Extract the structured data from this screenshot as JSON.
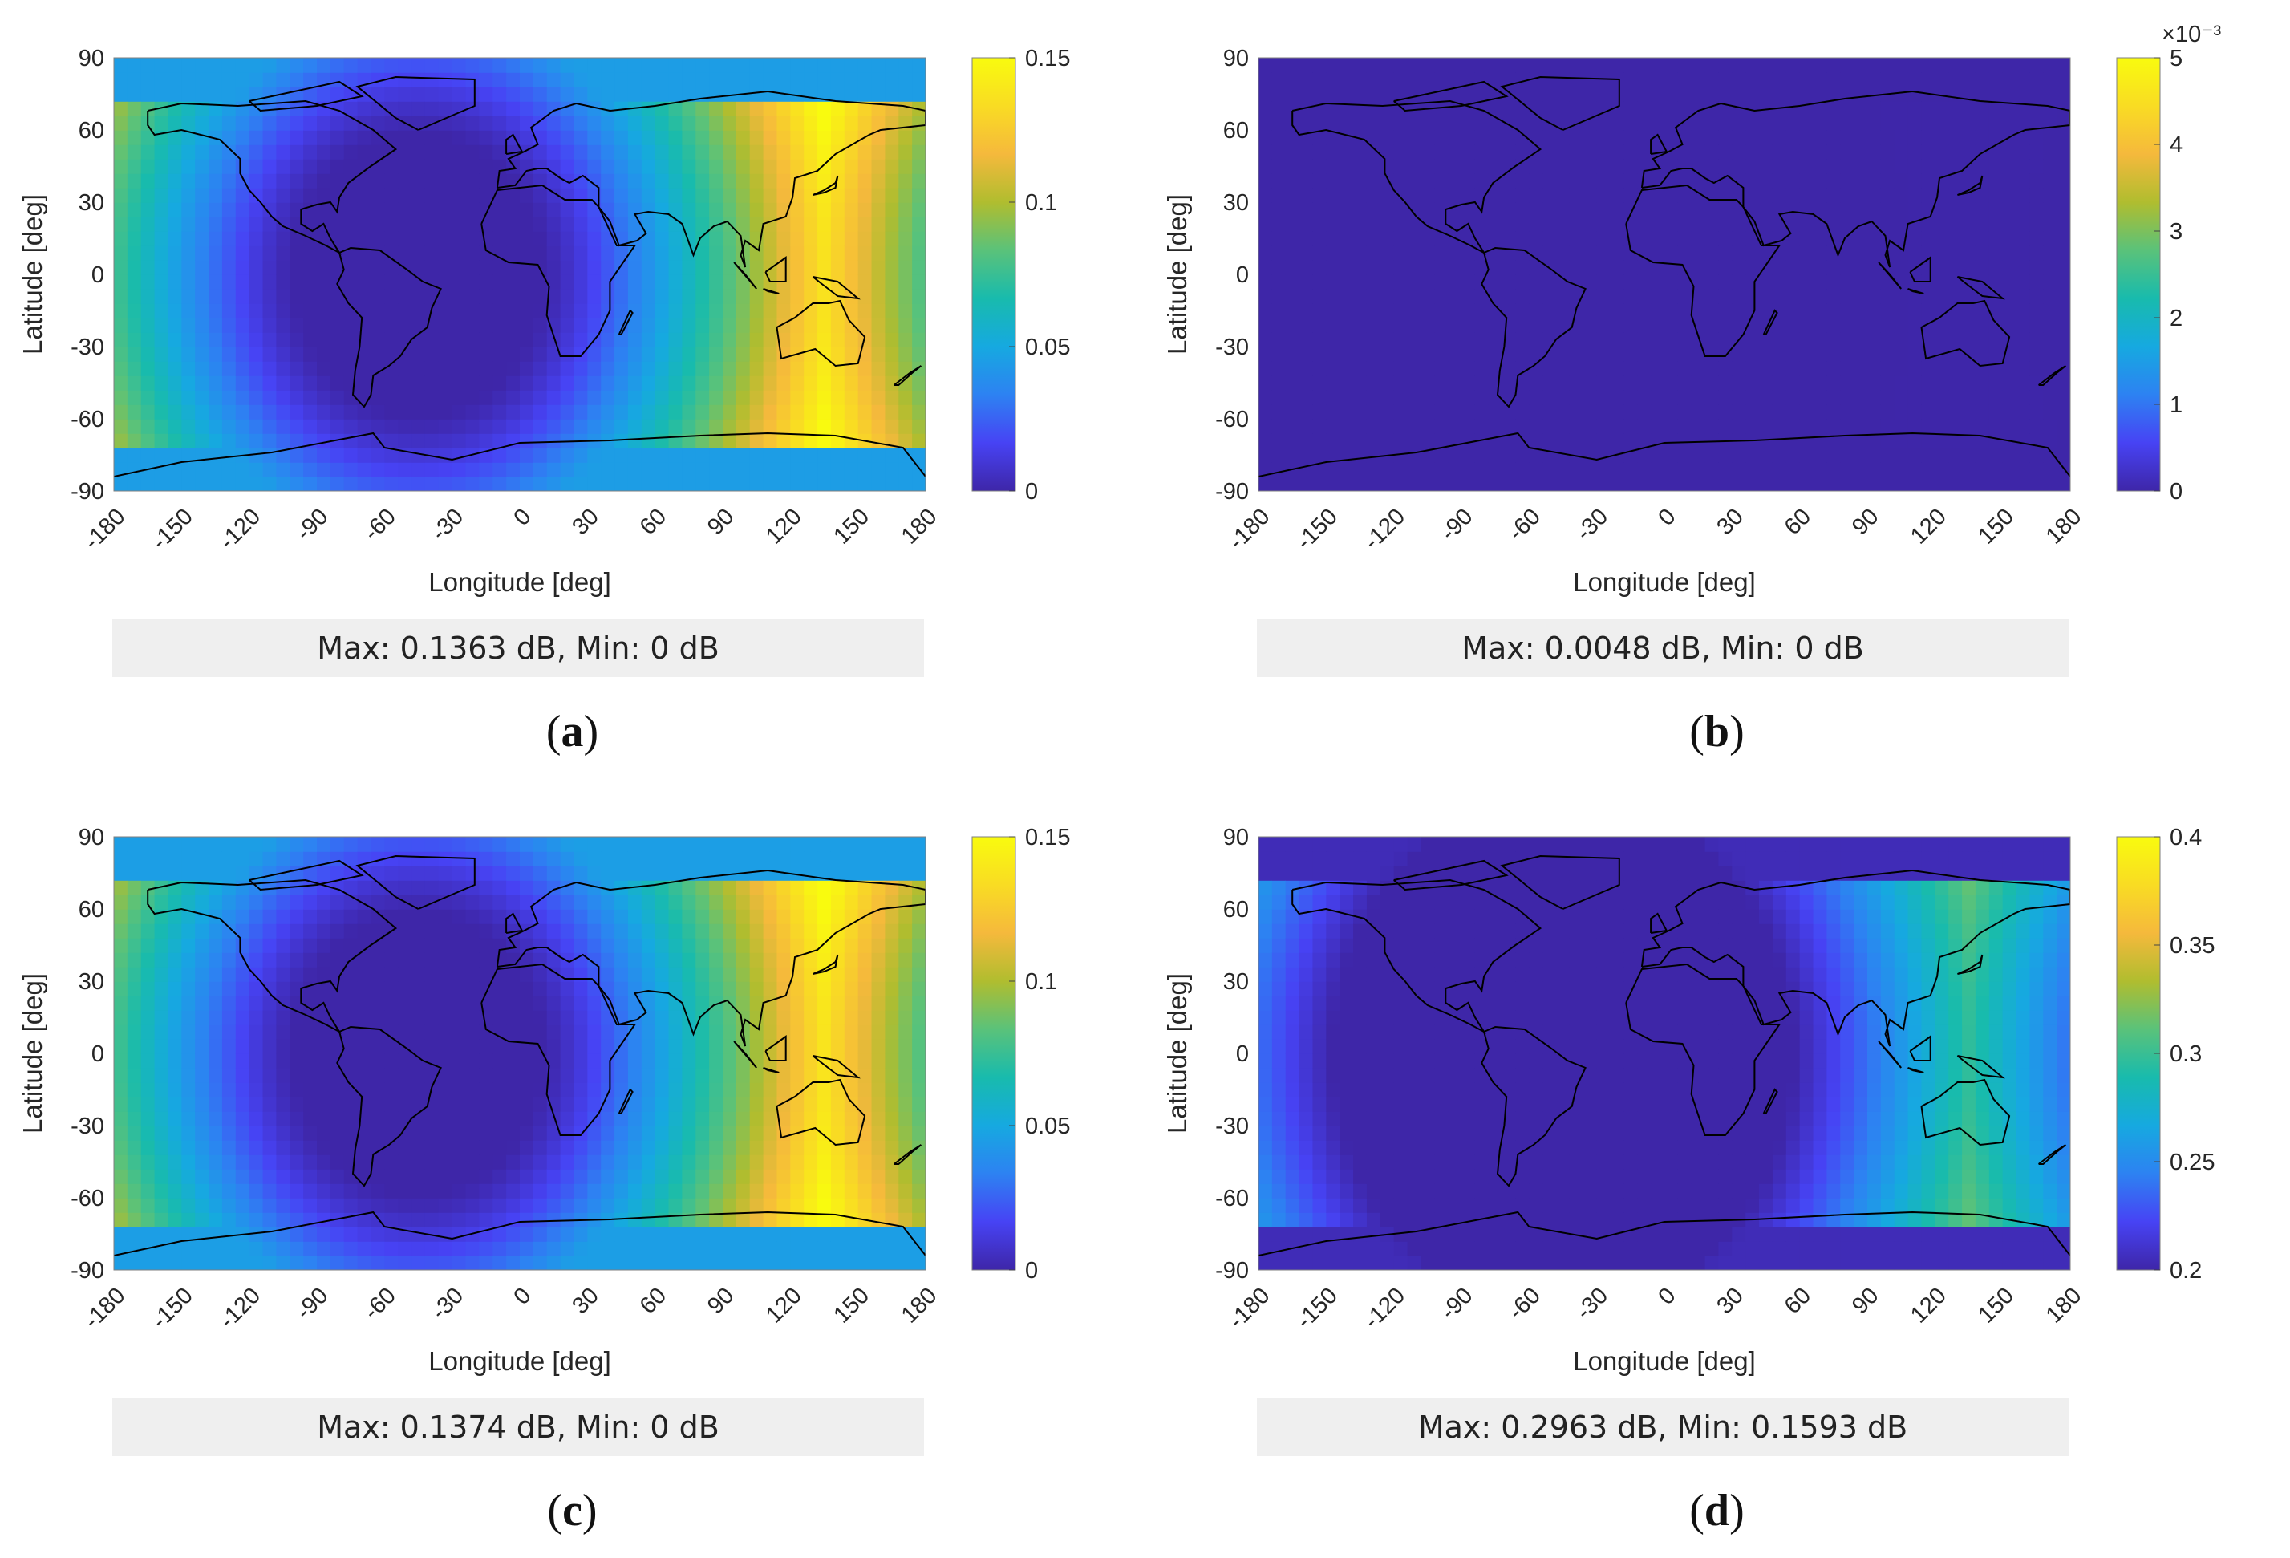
{
  "colormap": [
    "#3e26a8",
    "#4743f4",
    "#2d82f2",
    "#16a9e0",
    "#18bbad",
    "#5ac27a",
    "#b0bd2f",
    "#f5b93c",
    "#f9dc23",
    "#f9fb0e"
  ],
  "chart_data": [
    {
      "type": "heatmap",
      "panel": "(a)",
      "xlabel": "Longitude [deg]",
      "ylabel": "Latitude [deg]",
      "xlim": [
        -180,
        180
      ],
      "ylim": [
        -90,
        90
      ],
      "xticks": [
        -180,
        -150,
        -120,
        -90,
        -60,
        -30,
        0,
        30,
        60,
        90,
        120,
        150,
        180
      ],
      "yticks": [
        90,
        60,
        30,
        0,
        -30,
        -60,
        -90
      ],
      "colorbar": {
        "range": [
          0,
          0.15
        ],
        "ticks": [
          "0",
          "0.05",
          "0.1",
          "0.15"
        ],
        "tick_values": [
          0,
          0.05,
          0.1,
          0.15
        ],
        "multiplier": ""
      },
      "summary": "Max: 0.1363 dB, Min: 0 dB",
      "max": 0.1363,
      "min": 0,
      "minimum_center": [
        -45,
        0
      ],
      "maximum_center": [
        135,
        0
      ]
    },
    {
      "type": "heatmap",
      "panel": "(b)",
      "xlabel": "Longitude [deg]",
      "ylabel": "Latitude [deg]",
      "xlim": [
        -180,
        180
      ],
      "ylim": [
        -90,
        90
      ],
      "xticks": [
        -180,
        -150,
        -120,
        -90,
        -60,
        -30,
        0,
        30,
        60,
        90,
        120,
        150,
        180
      ],
      "yticks": [
        90,
        60,
        30,
        0,
        -30,
        -60,
        -90
      ],
      "colorbar": {
        "range": [
          0,
          5
        ],
        "ticks": [
          "0",
          "1",
          "2",
          "3",
          "4",
          "5"
        ],
        "tick_values": [
          0,
          1,
          2,
          3,
          4,
          5
        ],
        "multiplier": "×10⁻³"
      },
      "summary": "Max: 0.0048 dB, Min: 0 dB",
      "max": 0.0048,
      "min": 0,
      "minimum_center": [
        -45,
        0
      ],
      "maximum_center": [
        135,
        0
      ]
    },
    {
      "type": "heatmap",
      "panel": "(c)",
      "xlabel": "Longitude [deg]",
      "ylabel": "Latitude [deg]",
      "xlim": [
        -180,
        180
      ],
      "ylim": [
        -90,
        90
      ],
      "xticks": [
        -180,
        -150,
        -120,
        -90,
        -60,
        -30,
        0,
        30,
        60,
        90,
        120,
        150,
        180
      ],
      "yticks": [
        90,
        60,
        30,
        0,
        -30,
        -60,
        -90
      ],
      "colorbar": {
        "range": [
          0,
          0.15
        ],
        "ticks": [
          "0",
          "0.05",
          "0.1",
          "0.15"
        ],
        "tick_values": [
          0,
          0.05,
          0.1,
          0.15
        ],
        "multiplier": ""
      },
      "summary": "Max: 0.1374 dB, Min: 0 dB",
      "max": 0.1374,
      "min": 0,
      "minimum_center": [
        -45,
        0
      ],
      "maximum_center": [
        135,
        0
      ]
    },
    {
      "type": "heatmap",
      "panel": "(d)",
      "xlabel": "Longitude [deg]",
      "ylabel": "Latitude [deg]",
      "xlim": [
        -180,
        180
      ],
      "ylim": [
        -90,
        90
      ],
      "xticks": [
        -180,
        -150,
        -120,
        -90,
        -60,
        -30,
        0,
        30,
        60,
        90,
        120,
        150,
        180
      ],
      "yticks": [
        90,
        60,
        30,
        0,
        -30,
        -60,
        -90
      ],
      "colorbar": {
        "range": [
          0.2,
          0.4
        ],
        "ticks": [
          "0.2",
          "0.25",
          "0.3",
          "0.35",
          "0.4"
        ],
        "tick_values": [
          0.2,
          0.25,
          0.3,
          0.35,
          0.4
        ],
        "multiplier": ""
      },
      "summary": "Max: 0.2963 dB, Min: 0.1593 dB",
      "max": 0.2963,
      "min": 0.1593,
      "minimum_center": [
        -45,
        0
      ],
      "maximum_center": [
        135,
        0
      ]
    }
  ],
  "panel_labels": [
    {
      "open": "(",
      "letter": "a",
      "close": ")"
    },
    {
      "open": "(",
      "letter": "b",
      "close": ")"
    },
    {
      "open": "(",
      "letter": "c",
      "close": ")"
    },
    {
      "open": "(",
      "letter": "d",
      "close": ")"
    }
  ]
}
